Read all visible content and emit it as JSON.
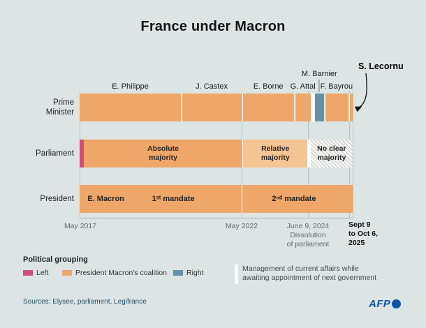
{
  "title": "France under Macron",
  "colors": {
    "background": "#dde4e4",
    "coalition_orange": "#efa669",
    "coalition_light_orange": "#f5c493",
    "left_pink": "#d24d7c",
    "right_blue": "#6193a9",
    "caretaker_white": "#ffffff",
    "afp_blue": "#0d56a6"
  },
  "chart_data": {
    "type": "timeline",
    "title": "France under Macron",
    "axis": {
      "start_label": "May 2017",
      "end_label": "Oct 6, 2025",
      "gridlines_pct": [
        0,
        59.3,
        83.6,
        98.7,
        100.1
      ]
    },
    "x_ticks": [
      {
        "label": "May 2017"
      },
      {
        "label": "May 2022"
      },
      {
        "label": "June 9, 2024\nDissolution\nof parliament"
      },
      {
        "label": "Sept 9\nto Oct 6,\n2025"
      }
    ],
    "rows": [
      {
        "label": "Prime\nMinister",
        "segments": [
          {
            "name": "E. Philippe",
            "group": "coalition",
            "x_pct": 0,
            "w_pct": 37.1,
            "label_above": true
          },
          {
            "name": "J. Castex",
            "group": "coalition",
            "x_pct": 37.35,
            "w_pct": 22.0,
            "divider": true,
            "label_above": true
          },
          {
            "name": "E. Borne",
            "group": "coalition",
            "x_pct": 59.6,
            "w_pct": 19.0,
            "divider": true,
            "label_above": true
          },
          {
            "name": "G. Attal",
            "group": "coalition",
            "x_pct": 78.85,
            "w_pct": 5.8,
            "divider": true,
            "label_above": true
          },
          {
            "name": "Management of current affairs",
            "group": "caretaker",
            "x_pct": 84.65,
            "w_pct": 1.55
          },
          {
            "name": "M. Barnier",
            "group": "right",
            "x_pct": 86.2,
            "w_pct": 3.2,
            "label_above": true,
            "label_raised": true
          },
          {
            "name": "F. Bayrou",
            "group": "coalition",
            "x_pct": 89.65,
            "w_pct": 8.85,
            "divider": true,
            "label_above": true
          },
          {
            "name": "S. Lecornu",
            "group": "coalition",
            "x_pct": 98.75,
            "w_pct": 1.25,
            "divider": true
          }
        ]
      },
      {
        "label": "Parliament",
        "segments": [
          {
            "name": "Left",
            "group": "left",
            "x_pct": 0,
            "w_pct": 1.55
          },
          {
            "name": "Absolute majority",
            "group": "coalition",
            "x_pct": 1.55,
            "w_pct": 58.05,
            "text": "Absolute\nmajority"
          },
          {
            "name": "Relative majority",
            "group": "coalition_light",
            "x_pct": 59.7,
            "w_pct": 23.7,
            "divider": true,
            "text": "Relative\nmajority"
          },
          {
            "name": "Dissolution gap",
            "group": "caretaker",
            "x_pct": 83.4,
            "w_pct": 1.2
          },
          {
            "name": "No clear majority",
            "group": "hatch",
            "x_pct": 84.6,
            "w_pct": 15.4,
            "text": "No clear\nmajority"
          }
        ]
      },
      {
        "label": "President",
        "segments": [
          {
            "name": "1st mandate",
            "group": "coalition",
            "x_pct": 0,
            "w_pct": 59.4
          },
          {
            "name": "2nd mandate",
            "group": "coalition",
            "x_pct": 59.4,
            "w_pct": 40.6,
            "divider": true
          }
        ],
        "labels": [
          {
            "text": "E. Macron",
            "x_pct": 2.9,
            "align": "left"
          },
          {
            "text": "1ˢᵗ mandate",
            "x_pct": 34.3
          },
          {
            "text": "2ⁿᵈ mandate",
            "x_pct": 78.5
          }
        ]
      }
    ],
    "annotation": {
      "label": "S. Lecornu"
    }
  },
  "legend": {
    "heading": "Political grouping",
    "items": [
      {
        "label": "Left",
        "group": "left"
      },
      {
        "label": "President Macron's coalition",
        "group": "coalition"
      },
      {
        "label": "Right",
        "group": "right"
      }
    ],
    "caretaker_note": "Management of current affairs while\nawaiting appointment of next government"
  },
  "footer": {
    "sources": "Sources: Elysee, parliament, Legifrance",
    "logo_text": "AFP"
  }
}
